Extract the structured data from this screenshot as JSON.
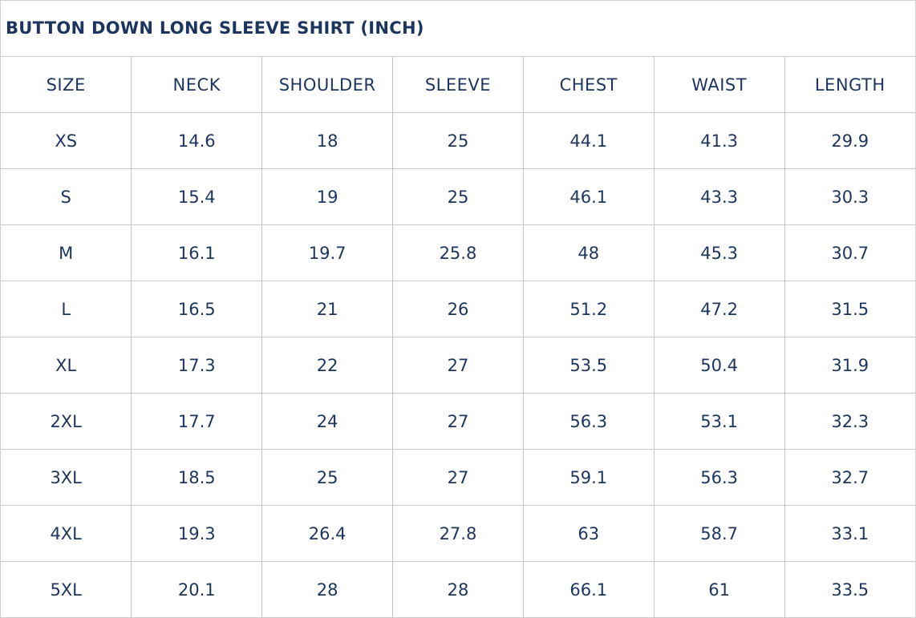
{
  "title": "BUTTON DOWN LONG SLEEVE SHIRT (INCH)",
  "colors": {
    "text": "#1c355e",
    "border": "#c8c8c8"
  },
  "headers": [
    "SIZE",
    "NECK",
    "SHOULDER",
    "SLEEVE",
    "CHEST",
    "WAIST",
    "LENGTH"
  ],
  "rows": [
    [
      "XS",
      "14.6",
      "18",
      "25",
      "44.1",
      "41.3",
      "29.9"
    ],
    [
      "S",
      "15.4",
      "19",
      "25",
      "46.1",
      "43.3",
      "30.3"
    ],
    [
      "M",
      "16.1",
      "19.7",
      "25.8",
      "48",
      "45.3",
      "30.7"
    ],
    [
      "L",
      "16.5",
      "21",
      "26",
      "51.2",
      "47.2",
      "31.5"
    ],
    [
      "XL",
      "17.3",
      "22",
      "27",
      "53.5",
      "50.4",
      "31.9"
    ],
    [
      "2XL",
      "17.7",
      "24",
      "27",
      "56.3",
      "53.1",
      "32.3"
    ],
    [
      "3XL",
      "18.5",
      "25",
      "27",
      "59.1",
      "56.3",
      "32.7"
    ],
    [
      "4XL",
      "19.3",
      "26.4",
      "27.8",
      "63",
      "58.7",
      "33.1"
    ],
    [
      "5XL",
      "20.1",
      "28",
      "28",
      "66.1",
      "61",
      "33.5"
    ]
  ]
}
